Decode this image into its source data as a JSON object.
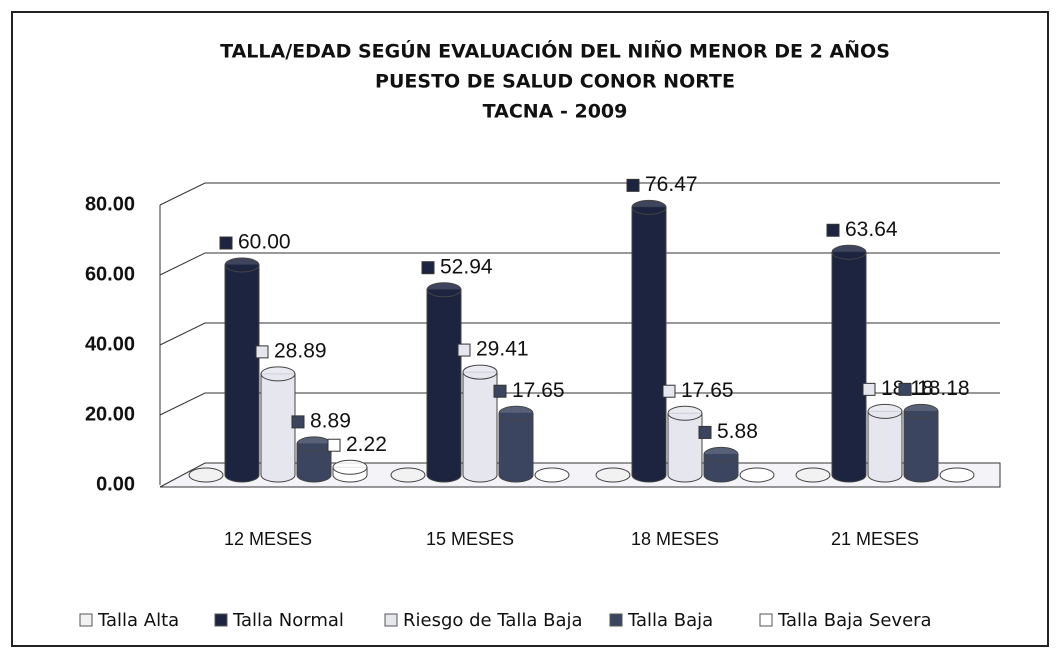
{
  "chart_data": {
    "type": "bar3d",
    "title": [
      "TALLA/EDAD SEGÚN EVALUACIÓN DEL NIÑO MENOR DE 2 AÑOS",
      "PUESTO DE SALUD CONOR NORTE",
      "TACNA - 2009"
    ],
    "categories": [
      "12 MESES",
      "15 MESES",
      "18 MESES",
      "21 MESES"
    ],
    "series": [
      {
        "name": "Talla Alta",
        "color": "#f2f2f2",
        "values": [
          0,
          0,
          0,
          0
        ]
      },
      {
        "name": "Talla Normal",
        "color": "#1c2440",
        "values": [
          60,
          52.94,
          76.47,
          63.64
        ],
        "value_labels": [
          "60.00",
          "52.94",
          "76.47",
          "63.64"
        ]
      },
      {
        "name": "Riesgo de Talla Baja",
        "color": "#e6e6ee",
        "values": [
          28.89,
          29.41,
          17.65,
          18.18
        ],
        "value_labels": [
          "28.89",
          "29.41",
          "17.65",
          "18.18"
        ]
      },
      {
        "name": "Talla Baja",
        "color": "#3b4560",
        "values": [
          8.89,
          17.65,
          5.88,
          18.18
        ],
        "value_labels": [
          "8.89",
          "17.65",
          "5.88",
          "18.18"
        ]
      },
      {
        "name": "Talla Baja Severa",
        "color": "#ffffff",
        "values": [
          2.22,
          0,
          0,
          0
        ],
        "value_labels": [
          "2.22",
          null,
          null,
          null
        ]
      }
    ],
    "ylim": [
      0,
      80
    ],
    "yticks": [
      {
        "value": 0,
        "label": "0.00"
      },
      {
        "value": 20,
        "label": "20.00"
      },
      {
        "value": 40,
        "label": "40.00"
      },
      {
        "value": 60,
        "label": "60.00"
      },
      {
        "value": 80,
        "label": "80.00"
      }
    ],
    "grid": true,
    "legend": "bottom"
  }
}
